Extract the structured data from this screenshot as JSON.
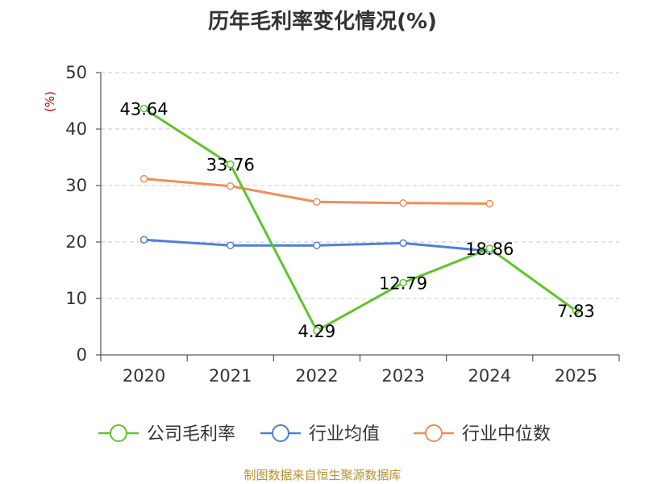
{
  "chart_data": {
    "type": "line",
    "title": "历年毛利率变化情况(%)",
    "ylabel": "(%)",
    "categories": [
      "2020",
      "2021",
      "2022",
      "2023",
      "2024",
      "2025"
    ],
    "ylim": [
      0,
      50
    ],
    "yticks": [
      "0",
      "10",
      "20",
      "30",
      "40",
      "50"
    ],
    "grid": true,
    "legend_position": "bottom",
    "series": [
      {
        "name": "公司毛利率",
        "color": "#5ec52a",
        "values": [
          43.64,
          33.76,
          4.29,
          12.79,
          18.86,
          7.83
        ],
        "labels": [
          "43.64",
          "33.76",
          "4.29",
          "12.79",
          "18.86",
          "7.83"
        ]
      },
      {
        "name": "行业均值",
        "color": "#4f7fdb",
        "values": [
          20.4,
          19.4,
          19.4,
          19.8,
          18.4,
          null
        ]
      },
      {
        "name": "行业中位数",
        "color": "#f28c58",
        "values": [
          31.2,
          29.9,
          27.1,
          26.9,
          26.8,
          null
        ]
      }
    ]
  },
  "source": "制图数据来自恒生聚源数据库"
}
